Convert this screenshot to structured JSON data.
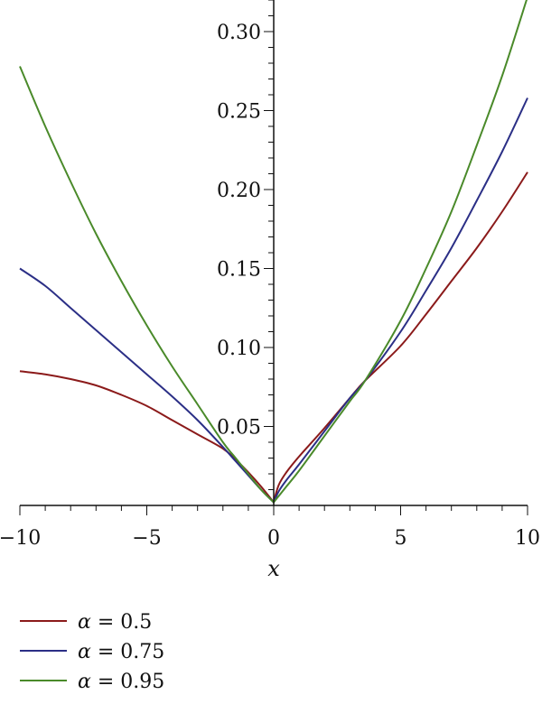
{
  "chart_data": {
    "type": "line",
    "xlabel": "x",
    "ylabel": "",
    "xlim": [
      -10,
      10
    ],
    "ylim": [
      0,
      0.32
    ],
    "x_ticks": [
      -10,
      -5,
      0,
      5,
      10
    ],
    "x_tick_labels": [
      "−10",
      "−5",
      "0",
      "5",
      "10"
    ],
    "y_ticks": [
      0.05,
      0.1,
      0.15,
      0.2,
      0.25,
      0.3
    ],
    "y_tick_labels": [
      "0.05",
      "0.10",
      "0.15",
      "0.20",
      "0.25",
      "0.30"
    ],
    "grid": false,
    "legend_position": "bottom-left",
    "series": [
      {
        "name": "α = 0.5",
        "legend_symbol": "α",
        "legend_value": "= 0.5",
        "color": "#8B1A1A",
        "points": [
          [
            -10,
            0.085
          ],
          [
            -9,
            0.083
          ],
          [
            -8,
            0.08
          ],
          [
            -7,
            0.076
          ],
          [
            -6,
            0.07
          ],
          [
            -5,
            0.063
          ],
          [
            -4,
            0.054
          ],
          [
            -3,
            0.045
          ],
          [
            -2,
            0.036
          ],
          [
            -1.5,
            0.029
          ],
          [
            -1,
            0.021
          ],
          [
            -0.5,
            0.012
          ],
          [
            0,
            0.002
          ],
          [
            0.2,
            0.013
          ],
          [
            0.5,
            0.021
          ],
          [
            1,
            0.031
          ],
          [
            2,
            0.049
          ],
          [
            3,
            0.068
          ],
          [
            3.6,
            0.079
          ],
          [
            5,
            0.101
          ],
          [
            6,
            0.121
          ],
          [
            7,
            0.142
          ],
          [
            8,
            0.163
          ],
          [
            9,
            0.186
          ],
          [
            10,
            0.211
          ]
        ]
      },
      {
        "name": "α = 0.75",
        "legend_symbol": "α",
        "legend_value": "= 0.75",
        "color": "#2B2F86",
        "points": [
          [
            -10,
            0.15
          ],
          [
            -9,
            0.139
          ],
          [
            -8,
            0.125
          ],
          [
            -7,
            0.111
          ],
          [
            -6,
            0.097
          ],
          [
            -5,
            0.083
          ],
          [
            -4,
            0.069
          ],
          [
            -3,
            0.054
          ],
          [
            -2,
            0.037
          ],
          [
            -1.5,
            0.028
          ],
          [
            -1,
            0.019
          ],
          [
            -0.5,
            0.01
          ],
          [
            0,
            0.002
          ],
          [
            0.2,
            0.009
          ],
          [
            0.5,
            0.016
          ],
          [
            1,
            0.026
          ],
          [
            2,
            0.047
          ],
          [
            3,
            0.068
          ],
          [
            3.6,
            0.079
          ],
          [
            5,
            0.11
          ],
          [
            6,
            0.136
          ],
          [
            7,
            0.163
          ],
          [
            8,
            0.193
          ],
          [
            9,
            0.224
          ],
          [
            10,
            0.258
          ]
        ]
      },
      {
        "name": "α = 0.95",
        "legend_symbol": "α",
        "legend_value": "= 0.95",
        "color": "#4A8A2A",
        "points": [
          [
            -10,
            0.278
          ],
          [
            -9,
            0.24
          ],
          [
            -8,
            0.205
          ],
          [
            -7,
            0.172
          ],
          [
            -6,
            0.142
          ],
          [
            -5,
            0.114
          ],
          [
            -4,
            0.088
          ],
          [
            -3,
            0.064
          ],
          [
            -2,
            0.04
          ],
          [
            -1.5,
            0.03
          ],
          [
            -1,
            0.02
          ],
          [
            -0.5,
            0.01
          ],
          [
            0,
            0.002
          ],
          [
            0.2,
            0.006
          ],
          [
            0.5,
            0.012
          ],
          [
            1,
            0.022
          ],
          [
            2,
            0.044
          ],
          [
            3,
            0.066
          ],
          [
            3.6,
            0.079
          ],
          [
            5,
            0.117
          ],
          [
            6,
            0.15
          ],
          [
            7,
            0.186
          ],
          [
            8,
            0.228
          ],
          [
            9,
            0.272
          ],
          [
            10,
            0.322
          ]
        ]
      }
    ]
  }
}
